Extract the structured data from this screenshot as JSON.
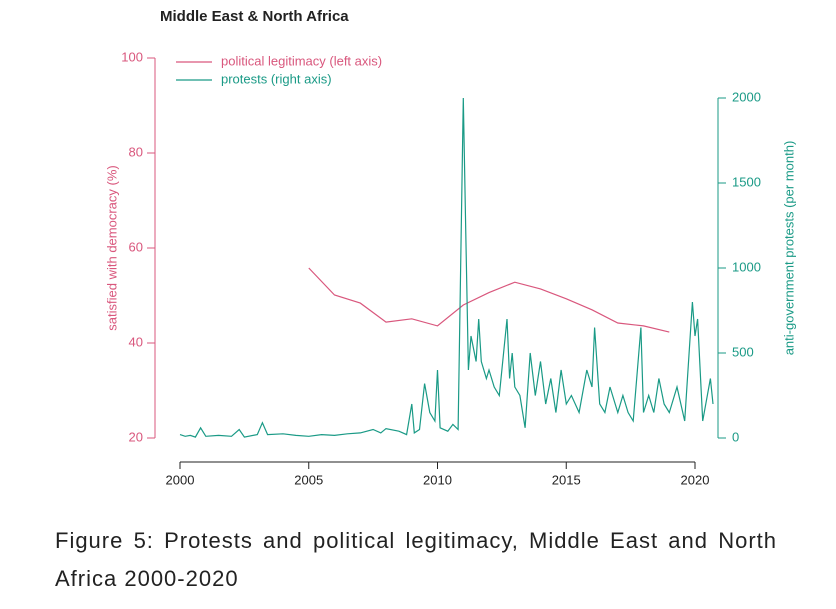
{
  "chart_data": {
    "type": "line",
    "title": "Middle East & North Africa",
    "ylabel": "satisfied with democracy (%)",
    "y2label": "anti-government protests (per month)",
    "xlim": [
      2000,
      2020
    ],
    "xticks": [
      2000,
      2005,
      2010,
      2015,
      2020
    ],
    "ylim": [
      20,
      100
    ],
    "yticks": [
      20,
      40,
      60,
      80,
      100
    ],
    "y2lim": [
      0,
      2000
    ],
    "y2ticks": [
      0,
      500,
      1000,
      1500,
      2000
    ],
    "legend": "top-left",
    "series": [
      {
        "name": "political legitimacy (left axis)",
        "color": "#d9577d",
        "axis": "y",
        "x": [
          2005,
          2006,
          2007,
          2008,
          2009,
          2010,
          2011,
          2012,
          2013,
          2014,
          2015,
          2016,
          2017,
          2018,
          2019
        ],
        "values": [
          55.8,
          50.1,
          48.4,
          44.4,
          45.1,
          43.6,
          48,
          50.6,
          52.8,
          51.4,
          49.3,
          47,
          44.2,
          43.6,
          42.3
        ]
      },
      {
        "name": "protests (right axis)",
        "color": "#1a9a86",
        "axis": "y2",
        "x": [
          2000.0,
          2000.2,
          2000.4,
          2000.6,
          2000.8,
          2001.0,
          2001.5,
          2002.0,
          2002.3,
          2002.5,
          2003.0,
          2003.2,
          2003.4,
          2004.0,
          2004.5,
          2005.0,
          2005.5,
          2006.0,
          2006.5,
          2007.0,
          2007.5,
          2007.8,
          2008.0,
          2008.5,
          2008.8,
          2009.0,
          2009.1,
          2009.3,
          2009.5,
          2009.7,
          2009.9,
          2010.0,
          2010.1,
          2010.4,
          2010.6,
          2010.8,
          2011.0,
          2011.1,
          2011.2,
          2011.3,
          2011.5,
          2011.6,
          2011.7,
          2011.9,
          2012.0,
          2012.2,
          2012.4,
          2012.7,
          2012.8,
          2012.9,
          2013.0,
          2013.2,
          2013.4,
          2013.6,
          2013.8,
          2014.0,
          2014.2,
          2014.4,
          2014.6,
          2014.8,
          2015.0,
          2015.2,
          2015.5,
          2015.8,
          2016.0,
          2016.1,
          2016.3,
          2016.5,
          2016.7,
          2017.0,
          2017.2,
          2017.4,
          2017.6,
          2017.9,
          2018.0,
          2018.2,
          2018.4,
          2018.6,
          2018.8,
          2019.0,
          2019.3,
          2019.6,
          2019.9,
          2020.0,
          2020.1,
          2020.3,
          2020.6,
          2020.7
        ],
        "values": [
          20,
          10,
          15,
          5,
          60,
          10,
          15,
          10,
          50,
          5,
          20,
          90,
          20,
          25,
          15,
          10,
          20,
          15,
          25,
          30,
          50,
          30,
          55,
          40,
          20,
          200,
          30,
          50,
          320,
          150,
          100,
          400,
          60,
          40,
          80,
          50,
          2000,
          1200,
          400,
          600,
          450,
          700,
          450,
          350,
          400,
          300,
          250,
          700,
          350,
          500,
          300,
          250,
          60,
          500,
          250,
          450,
          200,
          350,
          150,
          400,
          200,
          250,
          150,
          400,
          300,
          650,
          200,
          150,
          300,
          150,
          250,
          150,
          100,
          650,
          150,
          250,
          150,
          350,
          200,
          150,
          300,
          100,
          800,
          600,
          700,
          100,
          350,
          200
        ]
      }
    ]
  },
  "caption": "Figure 5: Protests and political legitimacy, Middle East and North Africa 2000-2020"
}
